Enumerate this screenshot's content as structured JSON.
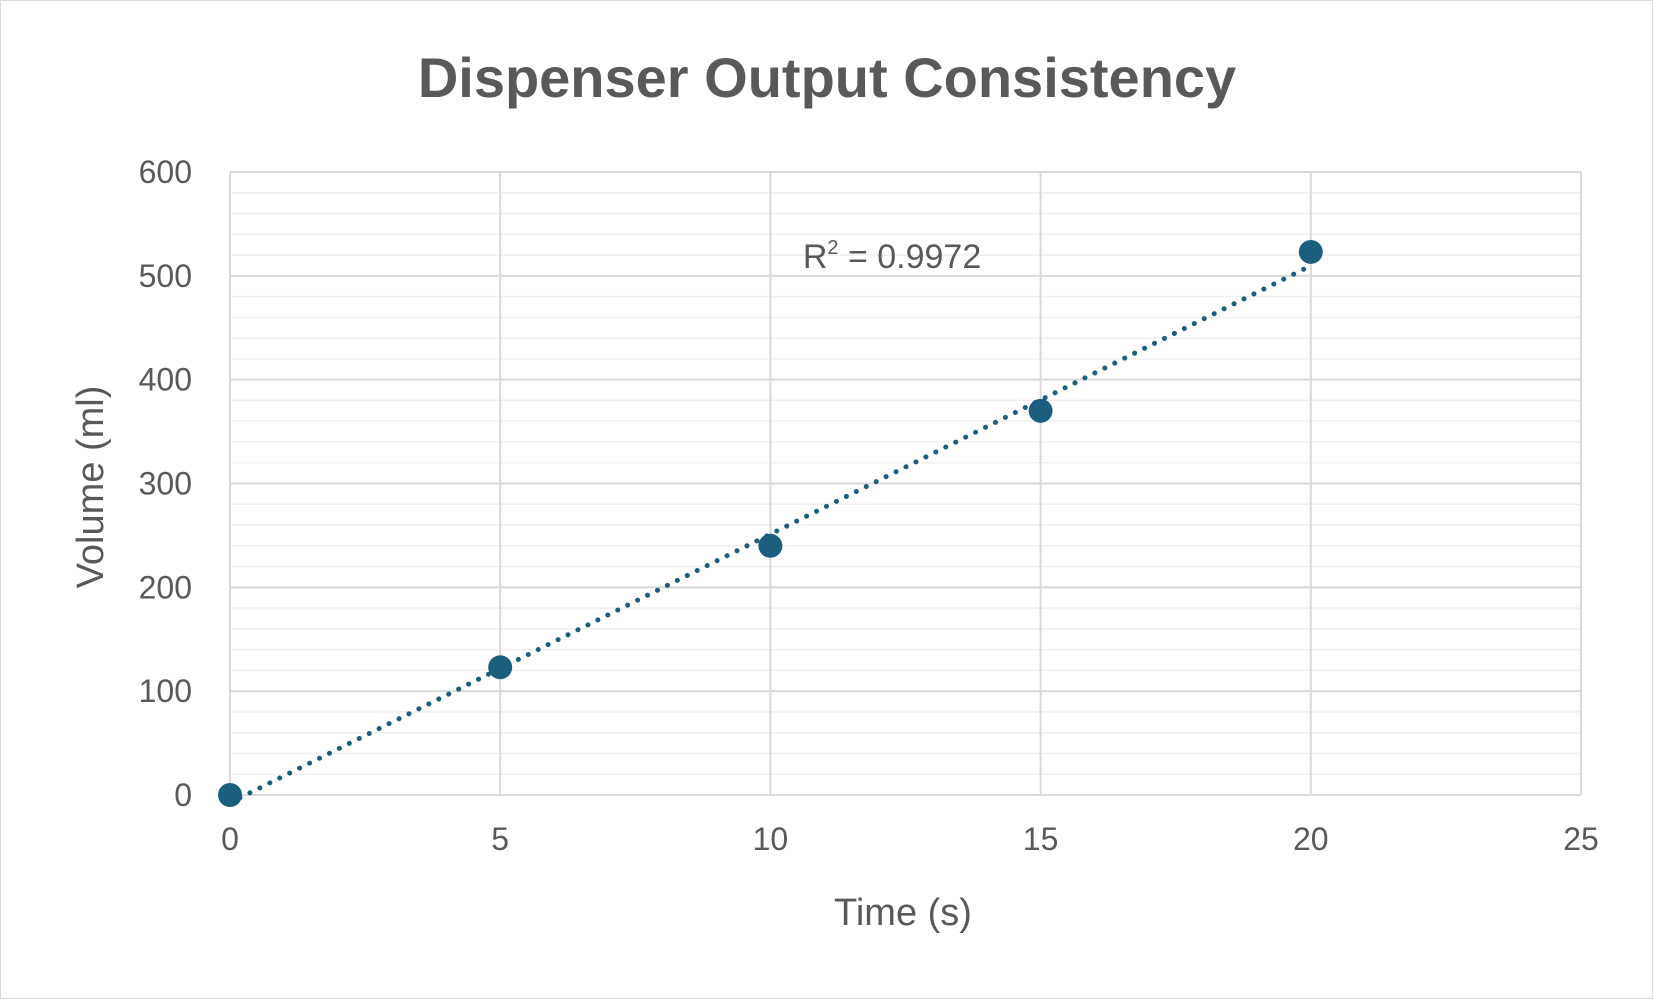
{
  "chart_data": {
    "type": "scatter",
    "title": "Dispenser Output Consistency",
    "xlabel": "Time (s)",
    "ylabel": "Volume (ml)",
    "xlim": [
      0,
      25
    ],
    "ylim": [
      0,
      600
    ],
    "x_major_ticks": [
      0,
      5,
      10,
      15,
      20,
      25
    ],
    "y_major_ticks": [
      0,
      100,
      200,
      300,
      400,
      500,
      600
    ],
    "y_minor_step": 20,
    "grid": true,
    "legend": "none",
    "series": [
      {
        "x": [
          0,
          5,
          10,
          15,
          20
        ],
        "y": [
          0,
          123,
          240,
          370,
          523
        ],
        "color": "#1b5e7e",
        "marker": "circle"
      }
    ],
    "trendline": {
      "type": "linear",
      "style": "dotted",
      "color": "#1b5e7e",
      "x_range": [
        0,
        20
      ],
      "annotation": {
        "r2_prefix": "R",
        "r2_superscript": "2",
        "r2_value_text": " = 0.9972",
        "at_x": 10.6,
        "at_y": 520
      }
    }
  }
}
